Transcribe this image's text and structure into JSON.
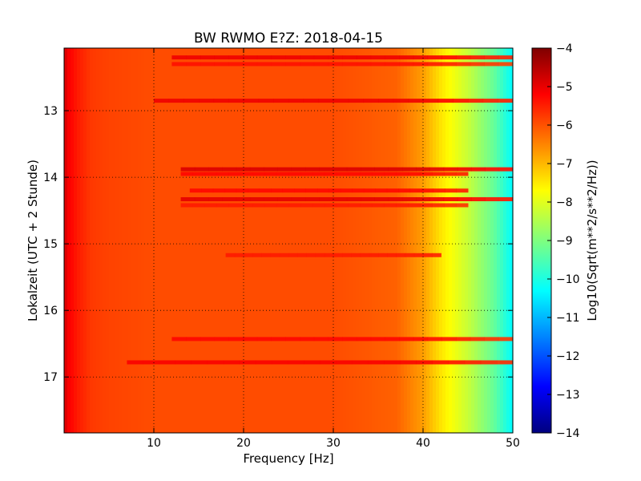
{
  "chart_data": {
    "type": "heatmap",
    "title": "BW RWMO E?Z: 2018-04-15",
    "xlabel": "Frequency [Hz]",
    "ylabel": "Lokalzeit (UTC + 2 Stunde)",
    "xlim": [
      0,
      50
    ],
    "ylim": [
      12.06,
      17.84
    ],
    "y_inverted": true,
    "grid": true,
    "x_ticks": [
      10,
      20,
      30,
      40,
      50
    ],
    "y_ticks": [
      13,
      14,
      15,
      16,
      17
    ],
    "colormap": "jet",
    "colorbar": {
      "label": "Log10(Sqrt(m**2/s**2/Hz))",
      "range": [
        -14,
        -4
      ],
      "ticks": [
        -4,
        -5,
        -6,
        -7,
        -8,
        -9,
        -10,
        -11,
        -12,
        -13,
        -14
      ]
    },
    "spectral_profile": {
      "frequency_hz": [
        0,
        0.5,
        1.5,
        3,
        5,
        10,
        20,
        30,
        37,
        40,
        42,
        45,
        48,
        50
      ],
      "log10_amplitude": [
        -4.8,
        -5.2,
        -5.5,
        -5.8,
        -5.9,
        -6.0,
        -6.0,
        -6.0,
        -6.2,
        -6.8,
        -7.5,
        -8.3,
        -9.3,
        -10.3
      ]
    },
    "bands": [
      {
        "time": 12.2,
        "f_start": 12,
        "f_end": 50,
        "log10_amplitude": -5.1
      },
      {
        "time": 12.3,
        "f_start": 12,
        "f_end": 50,
        "log10_amplitude": -5.4
      },
      {
        "time": 12.85,
        "f_start": 10,
        "f_end": 50,
        "log10_amplitude": -5.1
      },
      {
        "time": 13.88,
        "f_start": 13,
        "f_end": 50,
        "log10_amplitude": -4.9
      },
      {
        "time": 13.95,
        "f_start": 13,
        "f_end": 45,
        "log10_amplitude": -5.3
      },
      {
        "time": 14.2,
        "f_start": 14,
        "f_end": 45,
        "log10_amplitude": -5.3
      },
      {
        "time": 14.33,
        "f_start": 13,
        "f_end": 50,
        "log10_amplitude": -5.0
      },
      {
        "time": 14.42,
        "f_start": 13,
        "f_end": 45,
        "log10_amplitude": -5.5
      },
      {
        "time": 15.17,
        "f_start": 18,
        "f_end": 42,
        "log10_amplitude": -5.5
      },
      {
        "time": 16.43,
        "f_start": 12,
        "f_end": 50,
        "log10_amplitude": -5.3
      },
      {
        "time": 16.78,
        "f_start": 7,
        "f_end": 50,
        "log10_amplitude": -5.2
      }
    ]
  }
}
